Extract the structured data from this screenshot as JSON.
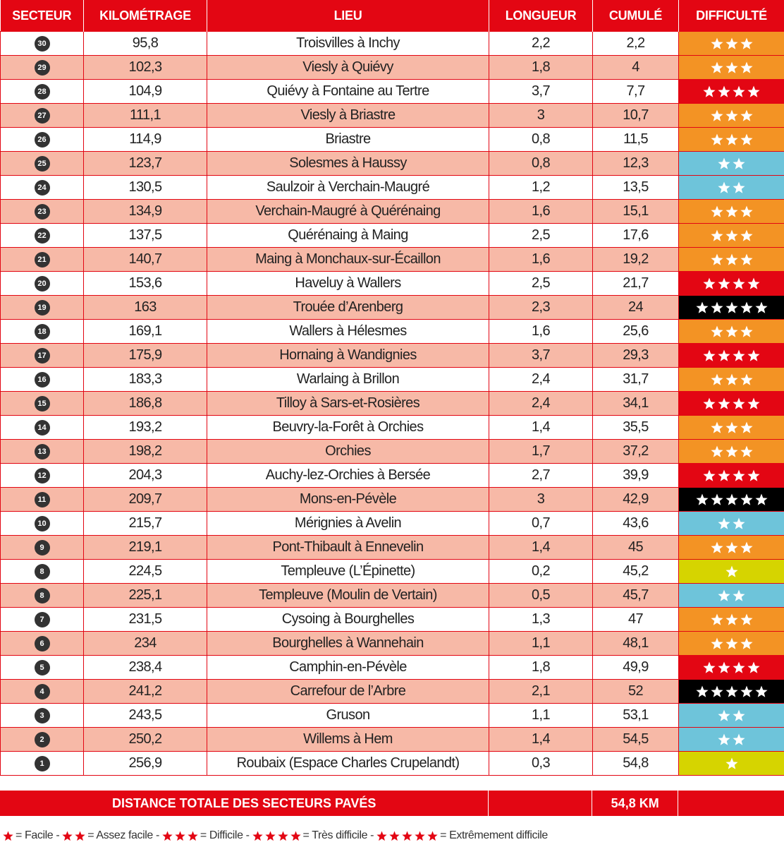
{
  "header": {
    "columns": [
      "SECTEUR",
      "KILOMÉTRAGE",
      "LIEU",
      "LONGUEUR",
      "CUMULÉ",
      "DIFFICULTÉ"
    ]
  },
  "table": {
    "rows": [
      {
        "secteur": "30",
        "km": "95,8",
        "lieu": "Troisvilles à Inchy",
        "longueur": "2,2",
        "cumule": "2,2",
        "difficulte": 3
      },
      {
        "secteur": "29",
        "km": "102,3",
        "lieu": "Viesly à Quiévy",
        "longueur": "1,8",
        "cumule": "4",
        "difficulte": 3
      },
      {
        "secteur": "28",
        "km": "104,9",
        "lieu": "Quiévy à Fontaine au Tertre",
        "longueur": "3,7",
        "cumule": "7,7",
        "difficulte": 4
      },
      {
        "secteur": "27",
        "km": "111,1",
        "lieu": "Viesly à Briastre",
        "longueur": "3",
        "cumule": "10,7",
        "difficulte": 3
      },
      {
        "secteur": "26",
        "km": "114,9",
        "lieu": "Briastre",
        "longueur": "0,8",
        "cumule": "11,5",
        "difficulte": 3
      },
      {
        "secteur": "25",
        "km": "123,7",
        "lieu": "Solesmes à Haussy",
        "longueur": "0,8",
        "cumule": "12,3",
        "difficulte": 2
      },
      {
        "secteur": "24",
        "km": "130,5",
        "lieu": "Saulzoir à Verchain-Maugré",
        "longueur": "1,2",
        "cumule": "13,5",
        "difficulte": 2
      },
      {
        "secteur": "23",
        "km": "134,9",
        "lieu": "Verchain-Maugré à Quérénaing",
        "longueur": "1,6",
        "cumule": "15,1",
        "difficulte": 3
      },
      {
        "secteur": "22",
        "km": "137,5",
        "lieu": "Quérénaing à Maing",
        "longueur": "2,5",
        "cumule": "17,6",
        "difficulte": 3
      },
      {
        "secteur": "21",
        "km": "140,7",
        "lieu": "Maing à Monchaux-sur-Écaillon",
        "longueur": "1,6",
        "cumule": "19,2",
        "difficulte": 3
      },
      {
        "secteur": "20",
        "km": "153,6",
        "lieu": "Haveluy à Wallers",
        "longueur": "2,5",
        "cumule": "21,7",
        "difficulte": 4
      },
      {
        "secteur": "19",
        "km": "163",
        "lieu": "Trouée d’Arenberg",
        "longueur": "2,3",
        "cumule": "24",
        "difficulte": 5
      },
      {
        "secteur": "18",
        "km": "169,1",
        "lieu": "Wallers à Hélesmes",
        "longueur": "1,6",
        "cumule": "25,6",
        "difficulte": 3
      },
      {
        "secteur": "17",
        "km": "175,9",
        "lieu": "Hornaing à Wandignies",
        "longueur": "3,7",
        "cumule": "29,3",
        "difficulte": 4
      },
      {
        "secteur": "16",
        "km": "183,3",
        "lieu": "Warlaing à Brillon",
        "longueur": "2,4",
        "cumule": "31,7",
        "difficulte": 3
      },
      {
        "secteur": "15",
        "km": "186,8",
        "lieu": "Tilloy à Sars-et-Rosières",
        "longueur": "2,4",
        "cumule": "34,1",
        "difficulte": 4
      },
      {
        "secteur": "14",
        "km": "193,2",
        "lieu": "Beuvry-la-Forêt à Orchies",
        "longueur": "1,4",
        "cumule": "35,5",
        "difficulte": 3
      },
      {
        "secteur": "13",
        "km": "198,2",
        "lieu": "Orchies",
        "longueur": "1,7",
        "cumule": "37,2",
        "difficulte": 3
      },
      {
        "secteur": "12",
        "km": "204,3",
        "lieu": "Auchy-lez-Orchies à Bersée",
        "longueur": "2,7",
        "cumule": "39,9",
        "difficulte": 4
      },
      {
        "secteur": "11",
        "km": "209,7",
        "lieu": "Mons-en-Pévèle",
        "longueur": "3",
        "cumule": "42,9",
        "difficulte": 5
      },
      {
        "secteur": "10",
        "km": "215,7",
        "lieu": "Mérignies à Avelin",
        "longueur": "0,7",
        "cumule": "43,6",
        "difficulte": 2
      },
      {
        "secteur": "9",
        "km": "219,1",
        "lieu": "Pont-Thibault à Ennevelin",
        "longueur": "1,4",
        "cumule": "45",
        "difficulte": 3
      },
      {
        "secteur": "8",
        "km": "224,5",
        "lieu": "Templeuve (L’Épinette)",
        "longueur": "0,2",
        "cumule": "45,2",
        "difficulte": 1
      },
      {
        "secteur": "8",
        "km": "225,1",
        "lieu": "Templeuve (Moulin de Vertain)",
        "longueur": "0,5",
        "cumule": "45,7",
        "difficulte": 2
      },
      {
        "secteur": "7",
        "km": "231,5",
        "lieu": "Cysoing à Bourghelles",
        "longueur": "1,3",
        "cumule": "47",
        "difficulte": 3
      },
      {
        "secteur": "6",
        "km": "234",
        "lieu": "Bourghelles à Wannehain",
        "longueur": "1,1",
        "cumule": "48,1",
        "difficulte": 3
      },
      {
        "secteur": "5",
        "km": "238,4",
        "lieu": "Camphin-en-Pévèle",
        "longueur": "1,8",
        "cumule": "49,9",
        "difficulte": 4
      },
      {
        "secteur": "4",
        "km": "241,2",
        "lieu": "Carrefour de l’Arbre",
        "longueur": "2,1",
        "cumule": "52",
        "difficulte": 5
      },
      {
        "secteur": "3",
        "km": "243,5",
        "lieu": "Gruson",
        "longueur": "1,1",
        "cumule": "53,1",
        "difficulte": 2
      },
      {
        "secteur": "2",
        "km": "250,2",
        "lieu": "Willems à Hem",
        "longueur": "1,4",
        "cumule": "54,5",
        "difficulte": 2
      },
      {
        "secteur": "1",
        "km": "256,9",
        "lieu": "Roubaix (Espace Charles Crupelandt)",
        "longueur": "0,3",
        "cumule": "54,8",
        "difficulte": 1
      }
    ]
  },
  "total": {
    "label": "DISTANCE TOTALE DES SECTEURS PAVÉS",
    "value": "54,8 KM"
  },
  "legend": [
    {
      "stars": 1,
      "label": "= Facile -"
    },
    {
      "stars": 2,
      "label": "= Assez facile -"
    },
    {
      "stars": 3,
      "label": "= Difficile -"
    },
    {
      "stars": 4,
      "label": "= Très difficile -"
    },
    {
      "stars": 5,
      "label": "= Extrêmement difficile"
    }
  ]
}
